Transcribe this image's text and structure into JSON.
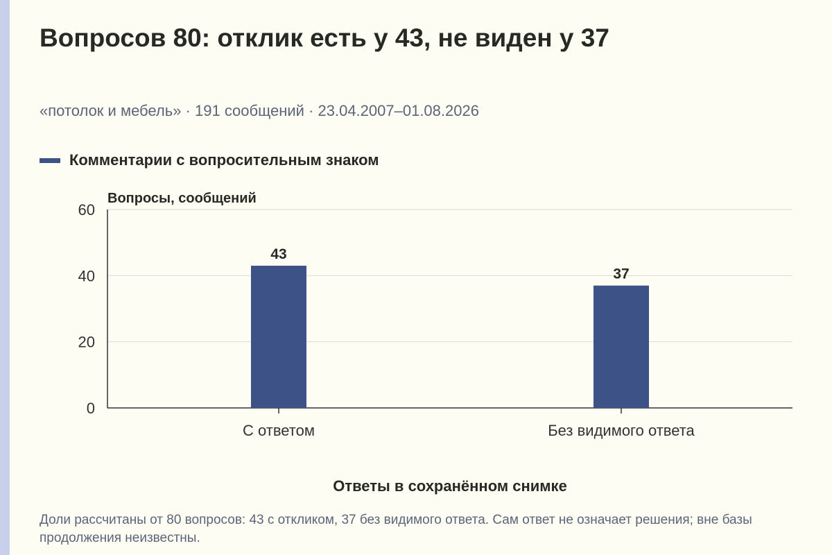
{
  "title": "Вопросов 80: отклик есть у 43, не виден у 37",
  "subtitle": "«потолок и мебель» · 191 сообщений · 23.04.2007–01.08.2026",
  "note": "Доли рассчитаны от 80 вопросов: 43 с откликом, 37 без видимого ответа. Сам ответ не означает решения; вне базы продолжения неизвестны.",
  "colors": {
    "bar": "#3d5286",
    "grid": "#d9d9d9",
    "axis": "#333333"
  },
  "chart_data": {
    "type": "bar",
    "categories": [
      "С ответом",
      "Без видимого ответа"
    ],
    "series": [
      {
        "name": "Комментарии с вопросительным знаком",
        "values": [
          43,
          37
        ]
      }
    ],
    "data_labels": [
      "43",
      "37"
    ],
    "ylabel": "Вопросы, сообщений",
    "xlabel": "Ответы в сохранённом снимке",
    "ylim": [
      0,
      60
    ],
    "yticks": [
      0,
      20,
      40,
      60
    ],
    "grid": true,
    "legend": "top-left"
  }
}
